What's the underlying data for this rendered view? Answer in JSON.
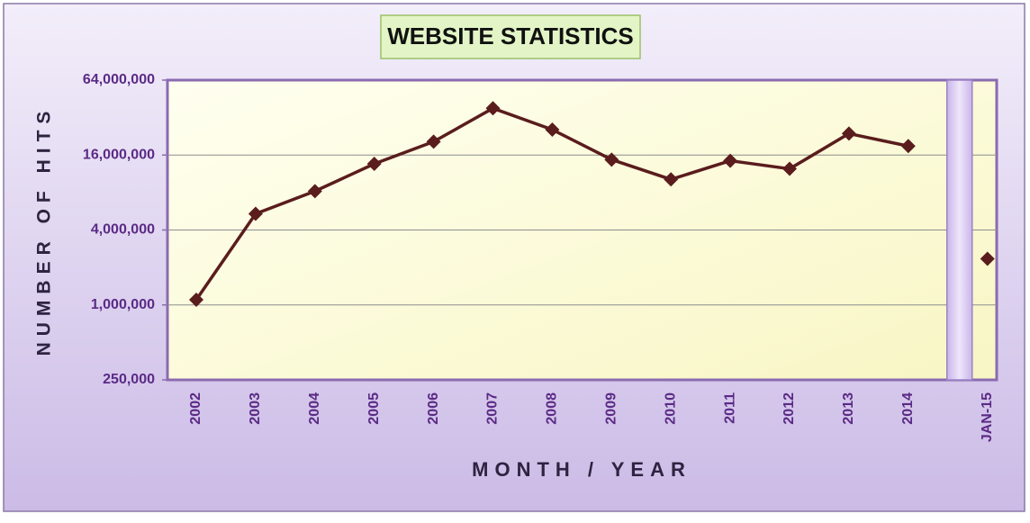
{
  "chart_data": {
    "type": "line",
    "title": "WEBSITE STATISTICS",
    "x_label": "MONTH / YEAR",
    "y_label": "NUMBER OF HITS",
    "categories": [
      "2002",
      "2003",
      "2004",
      "2005",
      "2006",
      "2007",
      "2008",
      "2009",
      "2010",
      "2011",
      "2012",
      "2013",
      "2014",
      null,
      "JAN-15"
    ],
    "series": [
      {
        "name": "Hits",
        "color": "#5a1c1c",
        "values": [
          1100000,
          5400000,
          8200000,
          13600000,
          20500000,
          38000000,
          25600000,
          14700000,
          10200000,
          14400000,
          12400000,
          23800000,
          18900000,
          null,
          2350000
        ]
      }
    ],
    "yscale": "log",
    "ylim": [
      250000,
      64000000
    ],
    "yticks": [
      {
        "value": 250000,
        "label": "250,000"
      },
      {
        "value": 1000000,
        "label": "1,000,000"
      },
      {
        "value": 4000000,
        "label": "4,000,000"
      },
      {
        "value": 16000000,
        "label": "16,000,000"
      },
      {
        "value": 64000000,
        "label": "64,000,000"
      }
    ],
    "grid": true
  }
}
